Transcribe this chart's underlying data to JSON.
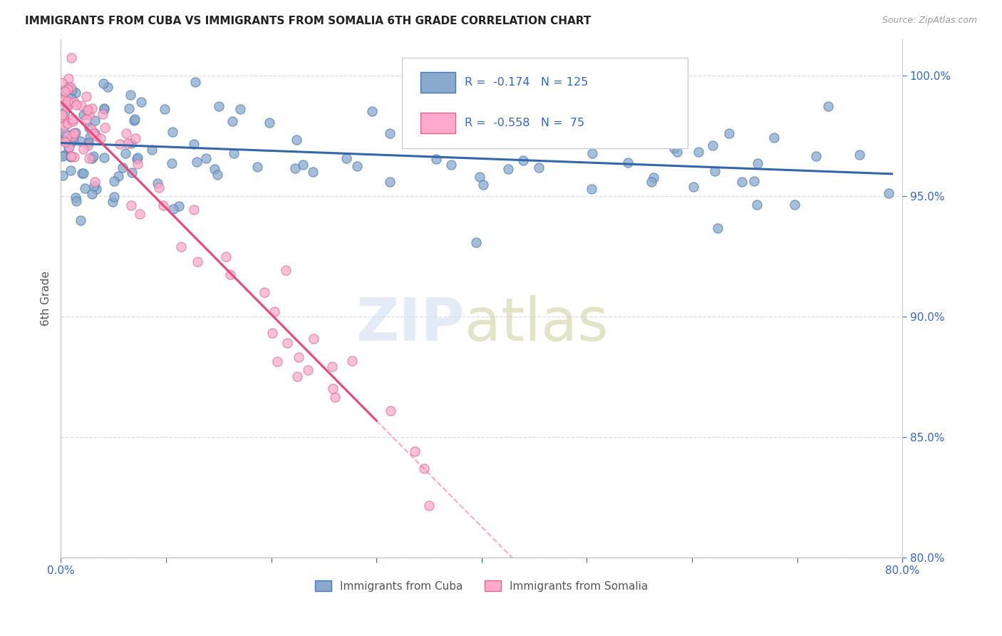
{
  "title": "IMMIGRANTS FROM CUBA VS IMMIGRANTS FROM SOMALIA 6TH GRADE CORRELATION CHART",
  "source": "Source: ZipAtlas.com",
  "ylabel": "6th Grade",
  "xlim": [
    0.0,
    80.0
  ],
  "ylim": [
    80.0,
    101.5
  ],
  "yticks": [
    80.0,
    85.0,
    90.0,
    95.0,
    100.0
  ],
  "xtick_labels_show": [
    "0.0%",
    "80.0%"
  ],
  "cuba_color": "#89AACC",
  "cuba_color_edge": "#4477BB",
  "cuba_line_color": "#3366AA",
  "somalia_color": "#FFAACC",
  "somalia_color_edge": "#DD6688",
  "somalia_line_color": "#EE4477",
  "legend_r_cuba": "-0.174",
  "legend_n_cuba": "125",
  "legend_r_somalia": "-0.558",
  "legend_n_somalia": "75",
  "grid_color": "#DDDDDD",
  "title_color": "#222222",
  "source_color": "#999999",
  "axis_label_color": "#3366CC",
  "ylabel_color": "#555555",
  "seed": 99
}
